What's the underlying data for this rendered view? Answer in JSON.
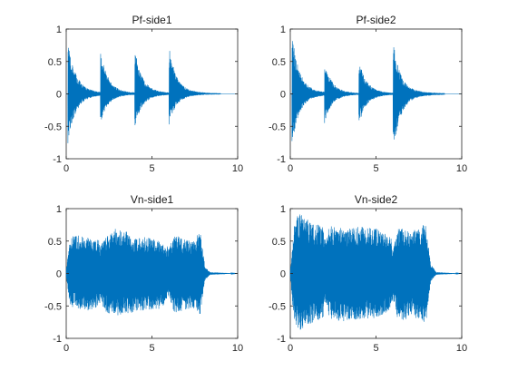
{
  "chart_data": [
    {
      "type": "line",
      "title": "Pf-side1",
      "xlim": [
        0,
        10
      ],
      "ylim": [
        -1,
        1
      ],
      "xticks": [
        0,
        5,
        10
      ],
      "yticks": [
        1,
        0.5,
        0,
        -0.5,
        -1
      ],
      "series": [
        {
          "color": "#0072BD",
          "envelope": {
            "kind": "piano",
            "x_end": 9.0,
            "onsets": [
              {
                "t": 0.1,
                "upper": 0.88,
                "lower": -0.8
              },
              {
                "t": 2.0,
                "upper": 0.68,
                "lower": -0.45
              },
              {
                "t": 4.0,
                "upper": 0.7,
                "lower": -0.52
              },
              {
                "t": 6.0,
                "upper": 0.73,
                "lower": -0.47
              }
            ]
          }
        }
      ]
    },
    {
      "type": "line",
      "title": "Pf-side2",
      "xlim": [
        0,
        10
      ],
      "ylim": [
        -1,
        1
      ],
      "xticks": [
        0,
        5,
        10
      ],
      "yticks": [
        1,
        0.5,
        0,
        -0.5,
        -1
      ],
      "series": [
        {
          "color": "#0072BD",
          "envelope": {
            "kind": "piano",
            "x_end": 9.0,
            "onsets": [
              {
                "t": 0.1,
                "upper": 0.93,
                "lower": -0.8
              },
              {
                "t": 2.0,
                "upper": 0.5,
                "lower": -0.45
              },
              {
                "t": 4.0,
                "upper": 0.55,
                "lower": -0.48
              },
              {
                "t": 6.0,
                "upper": 0.82,
                "lower": -0.92
              }
            ]
          }
        }
      ]
    },
    {
      "type": "line",
      "title": "Vn-side1",
      "xlim": [
        0,
        10
      ],
      "ylim": [
        -1,
        1
      ],
      "xticks": [
        0,
        5,
        10
      ],
      "yticks": [
        1,
        0.5,
        0,
        -0.5,
        -1
      ],
      "series": [
        {
          "color": "#0072BD",
          "envelope": {
            "kind": "violin",
            "x_end": 10.0,
            "profile": [
              [
                0.0,
                0.05,
                -0.05
              ],
              [
                0.2,
                0.55,
                -0.5
              ],
              [
                0.6,
                0.6,
                -0.55
              ],
              [
                1.2,
                0.58,
                -0.6
              ],
              [
                1.9,
                0.52,
                -0.5
              ],
              [
                2.0,
                0.42,
                -0.42
              ],
              [
                2.3,
                0.56,
                -0.6
              ],
              [
                2.9,
                0.7,
                -0.65
              ],
              [
                3.5,
                0.65,
                -0.62
              ],
              [
                4.0,
                0.55,
                -0.6
              ],
              [
                4.5,
                0.58,
                -0.58
              ],
              [
                5.5,
                0.5,
                -0.55
              ],
              [
                6.0,
                0.4,
                -0.38
              ],
              [
                6.3,
                0.6,
                -0.62
              ],
              [
                7.0,
                0.52,
                -0.55
              ],
              [
                7.5,
                0.5,
                -0.55
              ],
              [
                7.8,
                0.7,
                -0.65
              ],
              [
                8.1,
                0.1,
                -0.1
              ],
              [
                8.4,
                0.02,
                -0.02
              ],
              [
                10.0,
                0.0,
                0.0
              ]
            ]
          }
        }
      ]
    },
    {
      "type": "line",
      "title": "Vn-side2",
      "xlim": [
        0,
        10
      ],
      "ylim": [
        -1,
        1
      ],
      "xticks": [
        0,
        5,
        10
      ],
      "yticks": [
        1,
        0.5,
        0,
        -0.5,
        -1
      ],
      "series": [
        {
          "color": "#0072BD",
          "envelope": {
            "kind": "violin",
            "x_end": 10.0,
            "profile": [
              [
                0.0,
                0.05,
                -0.05
              ],
              [
                0.2,
                0.7,
                -0.7
              ],
              [
                0.5,
                0.95,
                -0.88
              ],
              [
                1.2,
                0.8,
                -0.78
              ],
              [
                1.9,
                0.72,
                -0.7
              ],
              [
                2.0,
                0.5,
                -0.45
              ],
              [
                2.3,
                0.75,
                -0.7
              ],
              [
                3.0,
                0.7,
                -0.75
              ],
              [
                4.0,
                0.72,
                -0.7
              ],
              [
                5.0,
                0.7,
                -0.7
              ],
              [
                5.9,
                0.55,
                -0.55
              ],
              [
                6.0,
                0.4,
                -0.4
              ],
              [
                6.3,
                0.72,
                -0.75
              ],
              [
                7.0,
                0.65,
                -0.68
              ],
              [
                7.6,
                0.7,
                -0.7
              ],
              [
                7.9,
                0.8,
                -0.8
              ],
              [
                8.2,
                0.15,
                -0.12
              ],
              [
                8.5,
                0.02,
                -0.02
              ],
              [
                10.0,
                0.0,
                0.0
              ]
            ]
          }
        }
      ]
    }
  ]
}
